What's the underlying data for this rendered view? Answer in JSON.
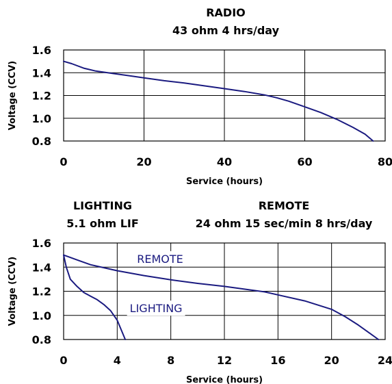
{
  "chart_data": [
    {
      "type": "line",
      "title_lines": [
        "RADIO",
        "43 ohm 4 hrs/day"
      ],
      "xlabel": "Service (hours)",
      "ylabel": "Voltage (CCV)",
      "xlim": [
        0,
        80
      ],
      "ylim": [
        0.8,
        1.6
      ],
      "x_ticks": [
        "0",
        "20",
        "40",
        "60",
        "80"
      ],
      "x_tick_values": [
        0,
        20,
        40,
        60,
        80
      ],
      "y_ticks": [
        "0.8",
        "1.0",
        "1.2",
        "1.4",
        "1.6"
      ],
      "y_tick_values": [
        0.8,
        1.0,
        1.2,
        1.4,
        1.6
      ],
      "grid": true,
      "line_color": "#1a1a80",
      "series": [
        {
          "x": [
            0,
            2,
            5,
            8,
            12,
            16,
            20,
            25,
            30,
            35,
            40,
            45,
            50,
            53,
            56,
            60,
            64,
            68,
            72,
            75,
            77
          ],
          "y": [
            1.5,
            1.48,
            1.44,
            1.415,
            1.395,
            1.375,
            1.355,
            1.33,
            1.31,
            1.285,
            1.26,
            1.235,
            1.205,
            1.18,
            1.15,
            1.1,
            1.05,
            0.99,
            0.92,
            0.86,
            0.8
          ]
        }
      ]
    },
    {
      "type": "line",
      "title_groups": [
        {
          "lines": [
            "LIGHTING",
            "5.1 ohm LIF"
          ]
        },
        {
          "lines": [
            "REMOTE",
            "24 ohm 15 sec/min 8 hrs/day"
          ]
        }
      ],
      "xlabel": "Service (hours)",
      "ylabel": "Voltage (CCV)",
      "xlim": [
        0,
        24
      ],
      "ylim": [
        0.8,
        1.6
      ],
      "x_ticks": [
        "0",
        "4",
        "8",
        "12",
        "16",
        "20",
        "24"
      ],
      "x_tick_values": [
        0,
        4,
        8,
        12,
        16,
        20,
        24
      ],
      "y_ticks": [
        "0.8",
        "1.0",
        "1.2",
        "1.4",
        "1.6"
      ],
      "y_tick_values": [
        0.8,
        1.0,
        1.2,
        1.4,
        1.6
      ],
      "grid": true,
      "line_color": "#1a1a80",
      "series": [
        {
          "name": "REMOTE",
          "x": [
            0,
            1,
            2,
            3,
            4,
            6,
            8,
            10,
            12,
            14,
            15,
            16,
            18,
            20,
            21,
            22,
            23,
            23.5
          ],
          "y": [
            1.5,
            1.46,
            1.42,
            1.395,
            1.37,
            1.33,
            1.295,
            1.265,
            1.24,
            1.21,
            1.195,
            1.17,
            1.12,
            1.05,
            0.99,
            0.92,
            0.84,
            0.8
          ]
        },
        {
          "name": "LIGHTING",
          "x": [
            0,
            0.2,
            0.5,
            1,
            1.5,
            2,
            2.5,
            3,
            3.5,
            4,
            4.3,
            4.6
          ],
          "y": [
            1.5,
            1.4,
            1.3,
            1.24,
            1.19,
            1.16,
            1.13,
            1.09,
            1.04,
            0.96,
            0.88,
            0.8
          ]
        }
      ],
      "annotations": [
        {
          "text": "REMOTE",
          "x": 7.2,
          "y": 1.47
        },
        {
          "text": "LIGHTING",
          "x": 6.9,
          "y": 1.06
        }
      ]
    }
  ]
}
